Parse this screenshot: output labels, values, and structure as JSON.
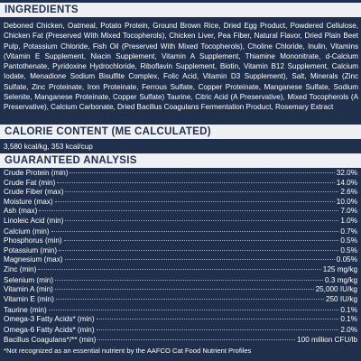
{
  "ingredients": {
    "heading": "INGREDIENTS",
    "text": "Deboned Chicken, Oatmeal, Potato Protein, Ground Brown Rice, Dried Egg Product, Powdered Cellulose, Chicken Fat (Preserved With Mixed Tocopherols), Chicken Liver, Pea Fiber, Natural Flavor, Dried Plain Beet Pulp, Potassium Chloride, Fish Oil (Preserved With Mixed Tocopherols), Choline Chloride, Inulin, Vitamins (Vitamin E Supplement, Niacin Supplement, Vitamin A Supplement, Thiamine Mononitrate, d-Calcium Pantothenate, Pyridoxine Hydrochloride, Riboflavin Supplement, Biotin, Vitamin B12 Supplement, Calcium Iodate, Menadione Sodium Bisulfite Complex, Folic Acid, Vitamin D3 Supplement), Salt, Minerals (Zinc Sulfate, Zinc Proteinate, Iron Proteinate, Ferrous Sulfate, Copper Proteinate, Manganese Sulfate, Sodium Selenite, Manganese Proteinate, Copper Sulfate) Taurine, Citric Acid (A Preservative), Mixed Tocopherols (A Preservative), Calcium Carbonate, Dried Bacillus Coagulans Fermentation Product, Rosemary Extract"
  },
  "calorie": {
    "heading": "CALORIE CONTENT (ME CALCULATED)",
    "text": "3,580 kcal/kg, 353 kcal/cup"
  },
  "analysis": {
    "heading": "GUARANTEED ANALYSIS",
    "rows": [
      {
        "label": "Crude Protein (min)",
        "value": "32.0%"
      },
      {
        "label": "Crude Fat (min)",
        "value": "14.0%"
      },
      {
        "label": "Crude Fiber (max)",
        "value": "2.6%"
      },
      {
        "label": "Moisture (max)",
        "value": "10.0%"
      },
      {
        "label": "Ash (max)",
        "value": "7.0%"
      },
      {
        "label": "Linoleic Acid (min)",
        "value": "1.0%"
      },
      {
        "label": "Calcium (min)",
        "value": "0.7%"
      },
      {
        "label": "Phosphorus (min)",
        "value": "0.5%"
      },
      {
        "label": "Potassium (min)",
        "value": "0.5%"
      },
      {
        "label": "Magnesium (max)",
        "value": "0.05%"
      },
      {
        "label": "Zinc (min)",
        "value": "125 mg/kg"
      },
      {
        "label": "Selenium (min)",
        "value": "0.3 mg/kg"
      },
      {
        "label": "Vitamin A (min)",
        "value": "25,000 IU/kg"
      },
      {
        "label": "Vitamin E (min)",
        "value": "250 IU/kg"
      },
      {
        "label": "Taurine (min)",
        "value": "0.1%"
      },
      {
        "label": "Omega-3 Fatty Acids* (min)",
        "value": "0.1%"
      },
      {
        "label": "Omega-6 Fatty Acids* (min)",
        "value": "2.0%"
      },
      {
        "label": "Bacillus Coagulans*/** (min)",
        "value": "100 million CFU/lb"
      }
    ],
    "footnote": "*Not recognized as an essential nutrient by the AAFCO Cat Food Nutrient Profiles"
  }
}
